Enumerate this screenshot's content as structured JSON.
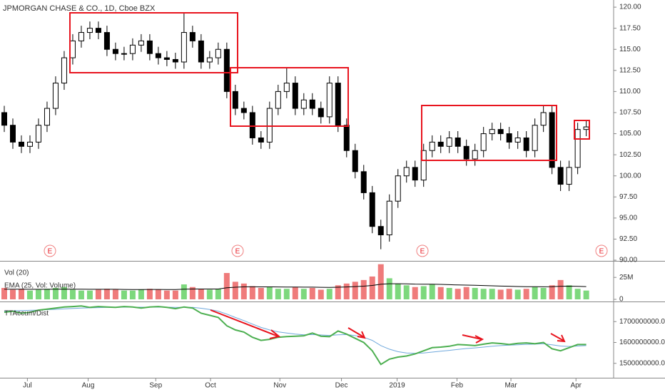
{
  "title": "JPMORGAN CHASE & CO., 1D, Cboe BZX",
  "earnings_markers": [
    "E",
    "E",
    "E",
    "E"
  ],
  "chart_data": [
    {
      "type": "candlestick",
      "xlim": [
        -0.5,
        71.2
      ],
      "xticks": [
        {
          "value": 2.7,
          "label": "Jul"
        },
        {
          "value": 9.8,
          "label": "Aug"
        },
        {
          "value": 17.7,
          "label": "Sep"
        },
        {
          "value": 24.1,
          "label": "Oct"
        },
        {
          "value": 32.2,
          "label": "Nov"
        },
        {
          "value": 39.4,
          "label": "Dec"
        },
        {
          "value": 45.9,
          "label": "2019"
        },
        {
          "value": 52.9,
          "label": "Feb"
        },
        {
          "value": 59.2,
          "label": "Mar"
        },
        {
          "value": 66.8,
          "label": "Apr"
        }
      ],
      "ylim": [
        89.92,
        120.85
      ],
      "yticks": [
        {
          "value": 90,
          "label": "90.00"
        },
        {
          "value": 92.5,
          "label": "92.50"
        },
        {
          "value": 95,
          "label": "95.00"
        },
        {
          "value": 97.5,
          "label": "97.50"
        },
        {
          "value": 100,
          "label": "100.00"
        },
        {
          "value": 102.5,
          "label": "102.50"
        },
        {
          "value": 105,
          "label": "105.00"
        },
        {
          "value": 107.5,
          "label": "107.50"
        },
        {
          "value": 110,
          "label": "110.00"
        },
        {
          "value": 112.5,
          "label": "112.50"
        },
        {
          "value": 115,
          "label": "115.00"
        },
        {
          "value": 117.5,
          "label": "117.50"
        },
        {
          "value": 120,
          "label": "120.00"
        }
      ],
      "up_color": "#ffffff",
      "down_color": "#000000",
      "open": [
        107.5,
        106,
        104,
        103.5,
        104,
        106,
        108,
        111,
        114,
        116,
        117,
        117.5,
        117,
        115,
        114.5,
        114.5,
        115.5,
        116,
        114.5,
        114,
        113.8,
        113.5,
        117,
        116,
        113.5,
        114,
        115,
        110,
        108,
        107.5,
        104.5,
        104,
        108,
        110,
        111,
        108,
        109,
        108,
        107,
        111,
        106,
        103,
        100.5,
        98,
        94,
        93,
        97,
        100,
        101,
        99.5,
        103,
        104,
        103.5,
        104.5,
        103.5,
        102,
        103,
        105,
        105.5,
        105,
        104,
        104.5,
        103,
        106,
        107.5,
        101,
        99,
        101,
        105.5
      ],
      "high": [
        108.3,
        106.8,
        104.8,
        104.8,
        106.8,
        108.8,
        111.8,
        114.8,
        116.8,
        117.8,
        118.3,
        118.3,
        117.8,
        115.8,
        115.3,
        116.3,
        116.8,
        116.8,
        115.3,
        114.8,
        114.6,
        119.3,
        117.8,
        116.8,
        114.8,
        115.8,
        115.8,
        110.8,
        108.8,
        108.3,
        105.3,
        108.8,
        110.8,
        112.8,
        111.8,
        109.8,
        109.8,
        108.8,
        111.8,
        111.8,
        106.8,
        103.8,
        101.3,
        98.8,
        94.8,
        97.8,
        100.8,
        101.8,
        101.8,
        103.8,
        104.8,
        104.8,
        105.3,
        105.3,
        104.3,
        103.8,
        105.8,
        106.3,
        106.3,
        105.8,
        105.3,
        105.3,
        106.8,
        108.3,
        108.3,
        101.8,
        101.8,
        106.3,
        106.6
      ],
      "low": [
        105.2,
        103.2,
        102.7,
        102.7,
        103.2,
        105.2,
        107.2,
        110.2,
        113.2,
        115.2,
        116.2,
        116.2,
        114.2,
        113.7,
        113.7,
        113.7,
        114.7,
        113.7,
        113.2,
        113,
        112.7,
        112.7,
        115.2,
        112.7,
        112.7,
        113.2,
        109.2,
        107.2,
        106.7,
        103.7,
        103.2,
        103.2,
        107.2,
        109.2,
        107.2,
        107.2,
        107.2,
        106.2,
        106.2,
        105.2,
        102.2,
        99.7,
        97.2,
        93.2,
        91.3,
        92.2,
        96.2,
        99.2,
        98.7,
        98.7,
        102.2,
        102.7,
        102.7,
        102.7,
        101.2,
        101.2,
        102.2,
        104.2,
        104.2,
        103.2,
        103.2,
        102.2,
        102.2,
        105.2,
        100.2,
        98.2,
        98.2,
        100.2,
        104.7
      ],
      "close": [
        106,
        104,
        103.5,
        104,
        106,
        108,
        111,
        114,
        116,
        117,
        117.5,
        117,
        115,
        114.5,
        114.5,
        115.5,
        116,
        114.5,
        114,
        113.8,
        113.5,
        117,
        116,
        113.5,
        114,
        115,
        110,
        108,
        107.5,
        104.5,
        104,
        108,
        110,
        111,
        108,
        109,
        108,
        107,
        111,
        106,
        103,
        100.5,
        98,
        94,
        93,
        97,
        100,
        101,
        99.5,
        103,
        104,
        103.5,
        104.5,
        103.5,
        102,
        103,
        105,
        105.5,
        105,
        104,
        104.5,
        103,
        106,
        107.5,
        101,
        99,
        101,
        105.5,
        105.8
      ]
    },
    {
      "type": "bar",
      "ylim": [
        0,
        43
      ],
      "yticks": [
        0,
        {
          "value": 25,
          "label": "25M"
        }
      ],
      "up_color": "#7dd87d",
      "down_color": "#ef7b7b",
      "series": [
        {
          "name": "Vol (20)",
          "values": [
            13,
            11,
            12,
            10,
            11,
            12,
            13,
            14,
            11,
            10,
            10,
            11,
            12,
            11,
            10,
            10,
            11,
            12,
            11,
            10,
            10,
            17,
            14,
            12,
            11,
            12,
            30,
            20,
            18,
            15,
            13,
            14,
            12,
            12,
            14,
            12,
            13,
            11,
            12,
            16,
            18,
            20,
            22,
            26,
            40,
            24,
            18,
            16,
            14,
            15,
            17,
            14,
            13,
            12,
            14,
            13,
            12,
            12,
            11,
            12,
            11,
            12,
            14,
            13,
            16,
            22,
            16,
            12,
            10
          ]
        },
        {
          "name": "EMA (25, Vol: Volume)",
          "color": "#000000",
          "values": [
            11.5,
            11.5,
            11.5,
            11.4,
            11.4,
            11.4,
            11.5,
            11.7,
            11.6,
            11.5,
            11.4,
            11.4,
            11.4,
            11.4,
            11.3,
            11.2,
            11.2,
            11.3,
            11.3,
            11.2,
            11.1,
            11.6,
            11.8,
            11.8,
            11.8,
            11.8,
            13.2,
            13.8,
            14.2,
            14.3,
            14.2,
            14.2,
            14.1,
            14,
            14,
            13.9,
            13.9,
            13.7,
            13.6,
            13.8,
            14.1,
            14.5,
            15,
            15.8,
            17.2,
            17.8,
            17.8,
            17.7,
            17.4,
            17.3,
            17.2,
            17,
            16.7,
            16.4,
            16.2,
            16,
            15.7,
            15.4,
            15.1,
            14.9,
            14.6,
            14.4,
            14.4,
            14.3,
            14.4,
            14.9,
            15,
            14.8,
            14.5
          ]
        }
      ]
    },
    {
      "type": "line",
      "title": "TTAccum/Dist",
      "ylim": [
        1431000000,
        1793000000
      ],
      "yticks": [
        {
          "value": 1500000000,
          "label": "1500000000.00"
        },
        {
          "value": 1600000000,
          "label": "1600000000.00"
        },
        {
          "value": 1700000000,
          "label": "1700000000.00"
        }
      ],
      "series": [
        {
          "color": "#4caf50",
          "width": 2,
          "values": [
            1745000000,
            1750000000,
            1740000000,
            1745000000,
            1755000000,
            1760000000,
            1765000000,
            1770000000,
            1772000000,
            1775000000,
            1768000000,
            1772000000,
            1770000000,
            1768000000,
            1772000000,
            1770000000,
            1765000000,
            1770000000,
            1772000000,
            1768000000,
            1762000000,
            1770000000,
            1765000000,
            1740000000,
            1730000000,
            1720000000,
            1680000000,
            1660000000,
            1650000000,
            1625000000,
            1610000000,
            1615000000,
            1625000000,
            1628000000,
            1630000000,
            1632000000,
            1645000000,
            1630000000,
            1628000000,
            1655000000,
            1640000000,
            1620000000,
            1600000000,
            1560000000,
            1495000000,
            1520000000,
            1530000000,
            1535000000,
            1545000000,
            1560000000,
            1575000000,
            1578000000,
            1582000000,
            1590000000,
            1588000000,
            1585000000,
            1592000000,
            1598000000,
            1595000000,
            1590000000,
            1596000000,
            1598000000,
            1594000000,
            1600000000,
            1570000000,
            1560000000,
            1575000000,
            1590000000,
            1590000000
          ]
        },
        {
          "color": "#6fa8dc",
          "width": 1,
          "values": [
            1750000000,
            1752000000,
            1753000000,
            1754000000,
            1755000000,
            1757000000,
            1759000000,
            1761000000,
            1763000000,
            1765000000,
            1766000000,
            1767000000,
            1768000000,
            1768000000,
            1769000000,
            1769000000,
            1769000000,
            1769000000,
            1769000000,
            1769000000,
            1768000000,
            1768000000,
            1768000000,
            1764000000,
            1758000000,
            1750000000,
            1736000000,
            1720000000,
            1705000000,
            1688000000,
            1672000000,
            1660000000,
            1651000000,
            1645000000,
            1640000000,
            1637000000,
            1638000000,
            1636000000,
            1634000000,
            1637000000,
            1638000000,
            1633000000,
            1625000000,
            1610000000,
            1585000000,
            1568000000,
            1556000000,
            1550000000,
            1548000000,
            1550000000,
            1554000000,
            1558000000,
            1562000000,
            1567000000,
            1571000000,
            1574000000,
            1578000000,
            1582000000,
            1585000000,
            1587000000,
            1589000000,
            1591000000,
            1592000000,
            1594000000,
            1589000000,
            1583000000,
            1581000000,
            1583000000,
            1585000000
          ]
        }
      ]
    }
  ]
}
